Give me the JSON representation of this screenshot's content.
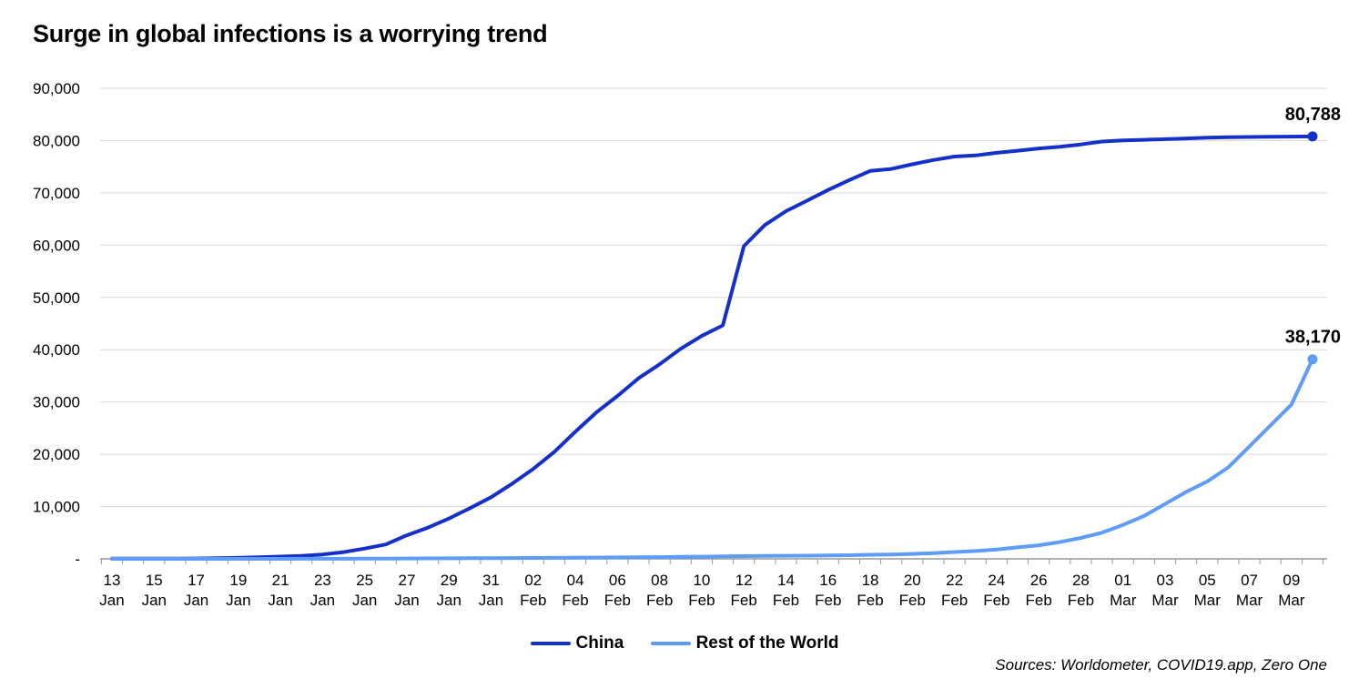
{
  "title": "Surge in global infections is a worrying trend",
  "source": "Sources: Worldometer, COVID19.app, Zero One",
  "colors": {
    "china": "#1530C8",
    "rest": "#5E9CF7",
    "grid": "#DADADA",
    "axis": "#999999"
  },
  "chart_data": {
    "type": "line",
    "title": "Surge in global infections is a worrying trend",
    "xlabel": "",
    "ylabel": "",
    "ylim": [
      0,
      90000
    ],
    "yticks": [
      "-",
      "10,000",
      "20,000",
      "30,000",
      "40,000",
      "50,000",
      "60,000",
      "70,000",
      "80,000",
      "90,000"
    ],
    "x_tick_labels": [
      [
        "13",
        "Jan"
      ],
      [
        "15",
        "Jan"
      ],
      [
        "17",
        "Jan"
      ],
      [
        "19",
        "Jan"
      ],
      [
        "21",
        "Jan"
      ],
      [
        "23",
        "Jan"
      ],
      [
        "25",
        "Jan"
      ],
      [
        "27",
        "Jan"
      ],
      [
        "29",
        "Jan"
      ],
      [
        "31",
        "Jan"
      ],
      [
        "02",
        "Feb"
      ],
      [
        "04",
        "Feb"
      ],
      [
        "06",
        "Feb"
      ],
      [
        "08",
        "Feb"
      ],
      [
        "10",
        "Feb"
      ],
      [
        "12",
        "Feb"
      ],
      [
        "14",
        "Feb"
      ],
      [
        "16",
        "Feb"
      ],
      [
        "18",
        "Feb"
      ],
      [
        "20",
        "Feb"
      ],
      [
        "22",
        "Feb"
      ],
      [
        "24",
        "Feb"
      ],
      [
        "26",
        "Feb"
      ],
      [
        "28",
        "Feb"
      ],
      [
        "01",
        "Mar"
      ],
      [
        "03",
        "Mar"
      ],
      [
        "05",
        "Mar"
      ],
      [
        "07",
        "Mar"
      ],
      [
        "09",
        "Mar"
      ]
    ],
    "x": [
      "2020-01-13",
      "2020-01-14",
      "2020-01-15",
      "2020-01-16",
      "2020-01-17",
      "2020-01-18",
      "2020-01-19",
      "2020-01-20",
      "2020-01-21",
      "2020-01-22",
      "2020-01-23",
      "2020-01-24",
      "2020-01-25",
      "2020-01-26",
      "2020-01-27",
      "2020-01-28",
      "2020-01-29",
      "2020-01-30",
      "2020-01-31",
      "2020-02-01",
      "2020-02-02",
      "2020-02-03",
      "2020-02-04",
      "2020-02-05",
      "2020-02-06",
      "2020-02-07",
      "2020-02-08",
      "2020-02-09",
      "2020-02-10",
      "2020-02-11",
      "2020-02-12",
      "2020-02-13",
      "2020-02-14",
      "2020-02-15",
      "2020-02-16",
      "2020-02-17",
      "2020-02-18",
      "2020-02-19",
      "2020-02-20",
      "2020-02-21",
      "2020-02-22",
      "2020-02-23",
      "2020-02-24",
      "2020-02-25",
      "2020-02-26",
      "2020-02-27",
      "2020-02-28",
      "2020-02-29",
      "2020-03-01",
      "2020-03-02",
      "2020-03-03",
      "2020-03-04",
      "2020-03-05",
      "2020-03-06",
      "2020-03-07",
      "2020-03-08",
      "2020-03-09",
      "2020-03-10"
    ],
    "series": [
      {
        "name": "China",
        "color": "#1530C8",
        "end_label": "80,788",
        "values": [
          41,
          41,
          41,
          45,
          62,
          121,
          198,
          291,
          440,
          571,
          830,
          1287,
          1975,
          2744,
          4515,
          5974,
          7711,
          9692,
          11791,
          14380,
          17205,
          20438,
          24324,
          28018,
          31161,
          34546,
          37198,
          40171,
          42638,
          44653,
          59804,
          63851,
          66492,
          68500,
          70548,
          72436,
          74185,
          74576,
          75465,
          76288,
          76936,
          77150,
          77658,
          78064,
          78497,
          78824,
          79251,
          79824,
          80026,
          80151,
          80270,
          80409,
          80552,
          80651,
          80695,
          80735,
          80754,
          80788
        ]
      },
      {
        "name": "Rest of the World",
        "color": "#5E9CF7",
        "end_label": "38,170",
        "values": [
          0,
          0,
          1,
          1,
          2,
          2,
          2,
          5,
          7,
          9,
          15,
          23,
          38,
          50,
          66,
          80,
          97,
          115,
          137,
          158,
          175,
          200,
          220,
          250,
          270,
          300,
          330,
          390,
          420,
          470,
          520,
          560,
          590,
          610,
          640,
          700,
          780,
          830,
          940,
          1100,
          1300,
          1500,
          1800,
          2200,
          2600,
          3200,
          4000,
          5000,
          6500,
          8200,
          10500,
          12800,
          14800,
          17500,
          21500,
          25500,
          29500,
          38170
        ]
      }
    ]
  }
}
